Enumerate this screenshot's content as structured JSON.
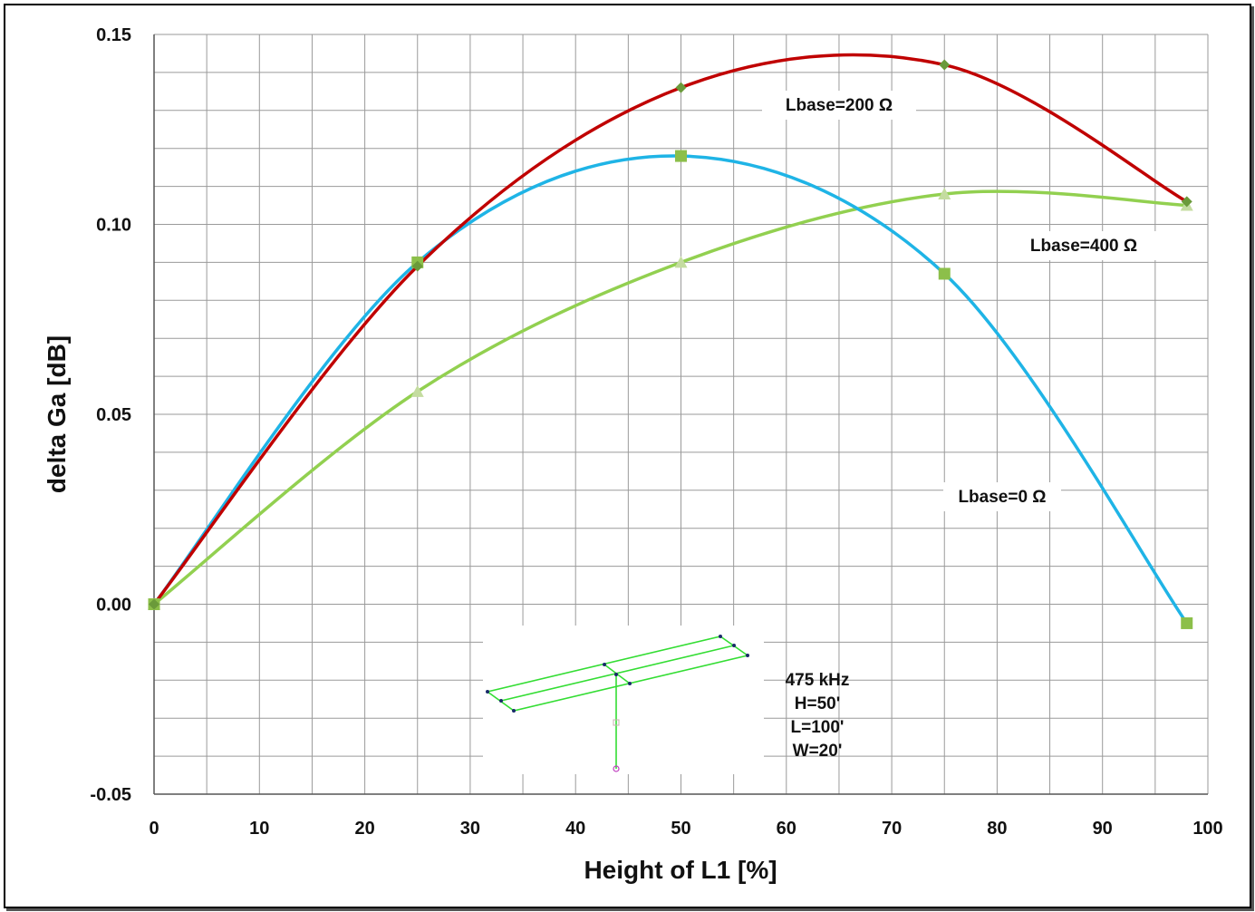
{
  "chart_data": {
    "type": "line",
    "xlabel": "Height  of L1 [%]",
    "ylabel": "delta Ga [dB]",
    "xlim": [
      0,
      100
    ],
    "ylim": [
      -0.05,
      0.15
    ],
    "x_ticks": [
      "0",
      "10",
      "20",
      "30",
      "40",
      "50",
      "60",
      "70",
      "80",
      "90",
      "100"
    ],
    "y_ticks": [
      "0.15",
      "0.10",
      "0.05",
      "0.00",
      "-0.05"
    ],
    "grid": true,
    "series": [
      {
        "name": "Lbase=200 Ω",
        "color": "#c00000",
        "marker": "diamond",
        "x": [
          0,
          25,
          50,
          75,
          98
        ],
        "y": [
          0.0,
          0.089,
          0.136,
          0.142,
          0.106
        ]
      },
      {
        "name": "Lbase=0 Ω",
        "color": "#1fb4e6",
        "marker": "square",
        "x": [
          0,
          25,
          50,
          75,
          98
        ],
        "y": [
          0.0,
          0.09,
          0.118,
          0.087,
          -0.005
        ]
      },
      {
        "name": "Lbase=400 Ω",
        "color": "#92d050",
        "marker": "triangle",
        "x": [
          0,
          25,
          50,
          75,
          98
        ],
        "y": [
          0.0,
          0.056,
          0.09,
          0.108,
          0.105
        ]
      }
    ],
    "annotations": {
      "inset_lines": [
        "475 kHz",
        "H=50'",
        "L=100'",
        "W=20'"
      ]
    }
  }
}
